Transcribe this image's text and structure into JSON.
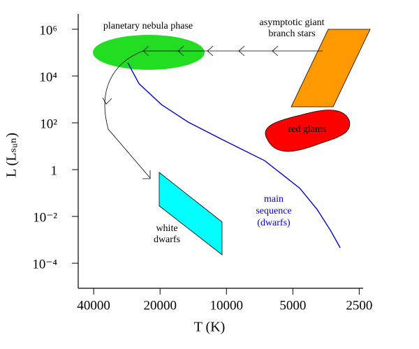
{
  "chart_data": {
    "type": "line",
    "xlabel": "T (K)",
    "ylabel": "L (Lₛᵤₙ)",
    "xscale": "log",
    "yscale": "log",
    "xlim": [
      47000,
      2400
    ],
    "ylim": [
      8.5e-06,
      4500000.0
    ],
    "xticks": [
      40000,
      20000,
      10000,
      5000,
      2500
    ],
    "yticks": [
      {
        "value": 1000000,
        "label": "10⁶"
      },
      {
        "value": 10000,
        "label": "10⁴"
      },
      {
        "value": 100,
        "label": "10²"
      },
      1,
      {
        "value": 0.01,
        "label": "10⁻²"
      },
      {
        "value": 0.0001,
        "label": "10⁻⁴"
      }
    ],
    "series": [
      {
        "name": "main sequence (dwarfs)",
        "label_lines": [
          "main",
          "sequence",
          "(dwarfs)"
        ],
        "color": "#0000cc",
        "x": [
          28000,
          24900,
          19700,
          14900,
          10400,
          6700,
          4650,
          3880,
          3370,
          3050
        ],
        "values": [
          37000,
          4700,
          600,
          107,
          19,
          2.4,
          0.16,
          0.02,
          0.0025,
          0.00046
        ]
      }
    ],
    "annotations": [
      {
        "lines": [
          "planetary nebula phase"
        ]
      },
      {
        "lines": [
          "asymptotic giant",
          "branch stars"
        ]
      },
      {
        "lines": [
          "red giants"
        ]
      },
      {
        "lines": [
          "white",
          "dwarfs"
        ]
      }
    ]
  }
}
